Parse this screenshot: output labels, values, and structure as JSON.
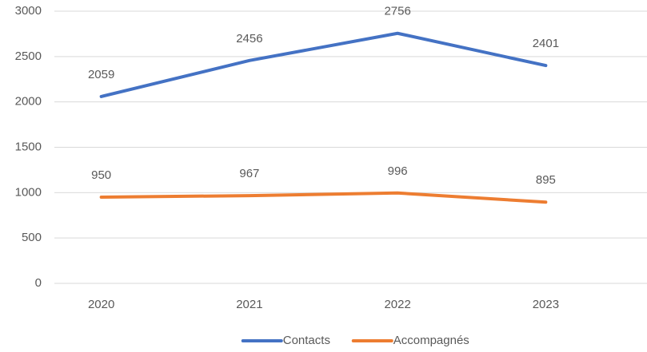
{
  "chart_data": {
    "type": "line",
    "categories": [
      "2020",
      "2021",
      "2022",
      "2023"
    ],
    "series": [
      {
        "name": "Contacts",
        "color": "#4472c4",
        "values": [
          2059,
          2456,
          2756,
          2401
        ]
      },
      {
        "name": "Accompagnés",
        "color": "#ed7d31",
        "values": [
          950,
          967,
          996,
          895
        ]
      }
    ],
    "ylim": [
      0,
      3000
    ],
    "yticks": [
      0,
      500,
      1000,
      1500,
      2000,
      2500,
      3000
    ],
    "grid": true,
    "legend": "bottom"
  }
}
